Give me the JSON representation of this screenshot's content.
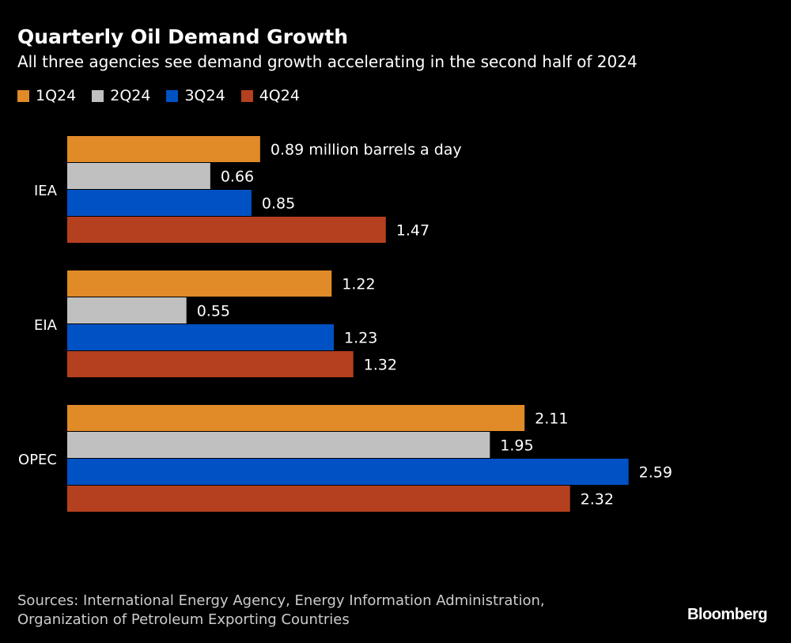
{
  "chart_data": {
    "type": "bar",
    "orientation": "horizontal",
    "title": "Quarterly Oil Demand Growth",
    "subtitle": "All three agencies see demand growth accelerating in the second half of 2024",
    "categories": [
      "IEA",
      "EIA",
      "OPEC"
    ],
    "series": [
      {
        "name": "1Q24",
        "color": "#E08A28",
        "values": [
          0.89,
          1.22,
          2.11
        ]
      },
      {
        "name": "2Q24",
        "color": "#C0C0C0",
        "values": [
          0.66,
          0.55,
          1.95
        ]
      },
      {
        "name": "3Q24",
        "color": "#0052C4",
        "values": [
          0.85,
          1.23,
          2.59
        ]
      },
      {
        "name": "4Q24",
        "color": "#B5401F",
        "values": [
          1.47,
          1.32,
          2.32
        ]
      }
    ],
    "first_label_suffix": " million barrels a day",
    "legend_position": "top-left",
    "grid": false,
    "xlim": [
      0,
      3
    ]
  },
  "source": {
    "line1": "Sources: International Energy Agency, Energy Information Administration,",
    "line2": "Organization of Petroleum Exporting Countries"
  },
  "logo": "Bloomberg"
}
